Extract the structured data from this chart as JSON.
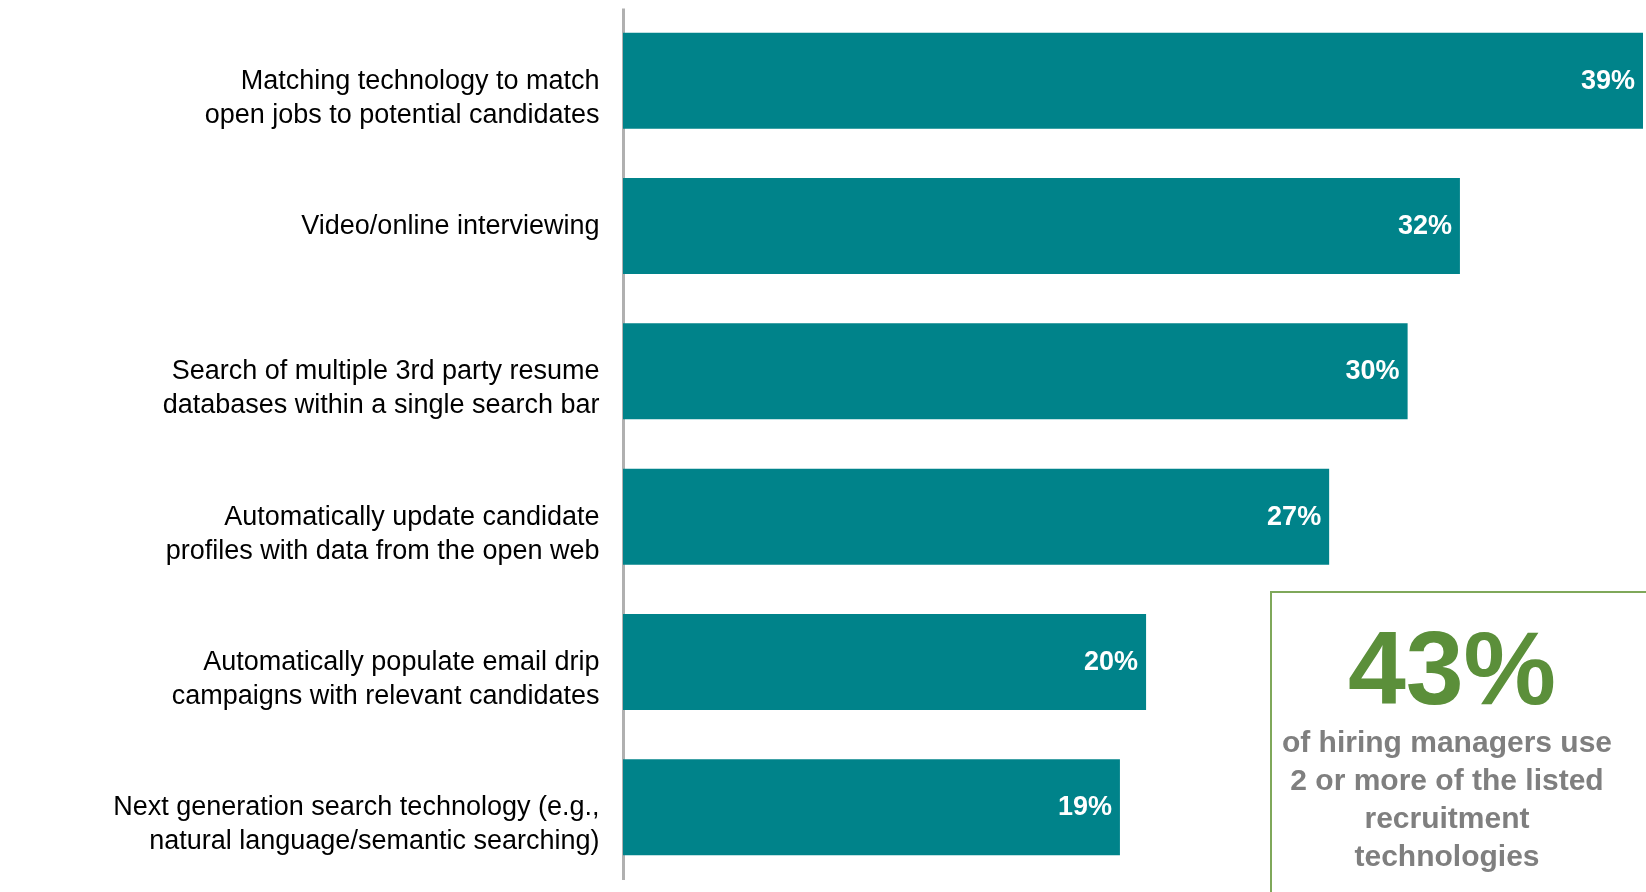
{
  "chart_data": {
    "type": "bar",
    "orientation": "horizontal",
    "categories": [
      "Matching technology to match open jobs to potential candidates",
      "Video/online interviewing",
      "Search of multiple 3rd party resume databases within a single search bar",
      "Automatically update candidate profiles with data from the open web",
      "Automatically populate email drip campaigns with relevant candidates",
      "Next generation search technology (e.g., natural language/semantic searching)"
    ],
    "values": [
      39,
      32,
      30,
      27,
      20,
      19
    ],
    "value_labels": [
      "39%",
      "32%",
      "30%",
      "27%",
      "20%",
      "19%"
    ],
    "color": "#00838a",
    "annotations": [
      "43%",
      "of hiring managers use 2 or more of the listed recruitment technologies"
    ]
  }
}
